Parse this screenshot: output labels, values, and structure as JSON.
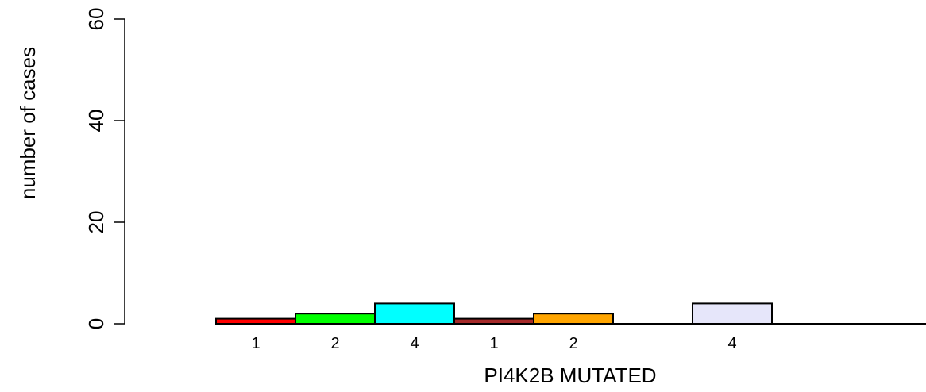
{
  "chart_data": {
    "type": "bar",
    "title": "",
    "xlabel": "PI4K2B MUTATED",
    "ylabel": "number of cases",
    "ylim": [
      0,
      60
    ],
    "yticks": [
      0,
      20,
      40,
      60
    ],
    "grid": false,
    "legend": "none",
    "bars": [
      {
        "label": "1",
        "value": 1,
        "color": "#ff0000"
      },
      {
        "label": "2",
        "value": 2,
        "color": "#00ff00"
      },
      {
        "label": "4",
        "value": 4,
        "color": "#00ffff"
      },
      {
        "label": "1",
        "value": 1,
        "color": "#a52a2a"
      },
      {
        "label": "2",
        "value": 2,
        "color": "#ffa500"
      },
      {
        "label": "",
        "value": 0,
        "color": "#ffffff"
      },
      {
        "label": "4",
        "value": 4,
        "color": "#e6e6fa"
      },
      {
        "label": "",
        "value": 0,
        "color": "#ffffff"
      }
    ]
  }
}
